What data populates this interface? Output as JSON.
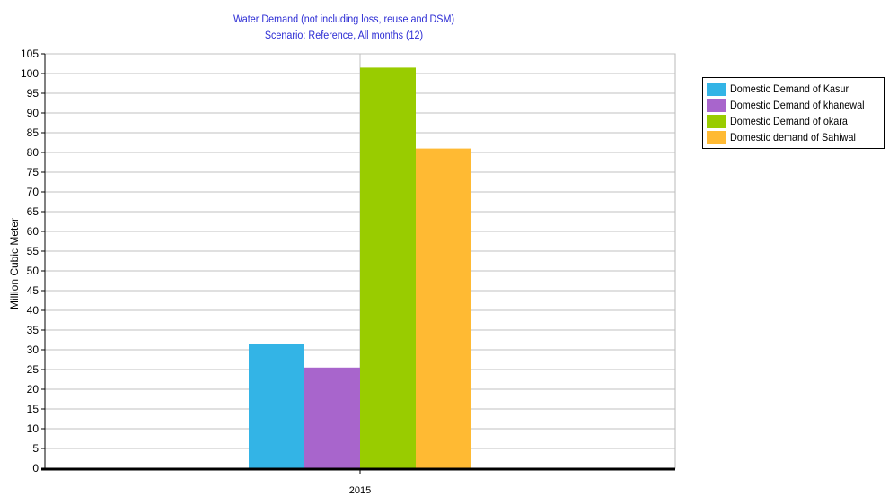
{
  "chart_data": {
    "type": "bar",
    "title": "Water Demand (not including loss, reuse and DSM)",
    "subtitle": "Scenario: Reference,  All months (12)",
    "ylabel": "Million Cubic Meter",
    "xlabel": "",
    "categories": [
      "2015"
    ],
    "ylim": [
      0,
      105
    ],
    "yticks": [
      0,
      5,
      10,
      15,
      20,
      25,
      30,
      35,
      40,
      45,
      50,
      55,
      60,
      65,
      70,
      75,
      80,
      85,
      90,
      95,
      100,
      105
    ],
    "grid": true,
    "legend_position": "top-right",
    "series": [
      {
        "name": "Domestic Demand of Kasur",
        "values": [
          31.5
        ],
        "color": "#33b4e6"
      },
      {
        "name": "Domestic Demand of khanewal",
        "values": [
          25.5
        ],
        "color": "#a865cc"
      },
      {
        "name": "Domestic Demand of okara",
        "values": [
          101.5
        ],
        "color": "#99cc00"
      },
      {
        "name": "Domestic demand of Sahiwal",
        "values": [
          81
        ],
        "color": "#ffba33"
      }
    ]
  }
}
